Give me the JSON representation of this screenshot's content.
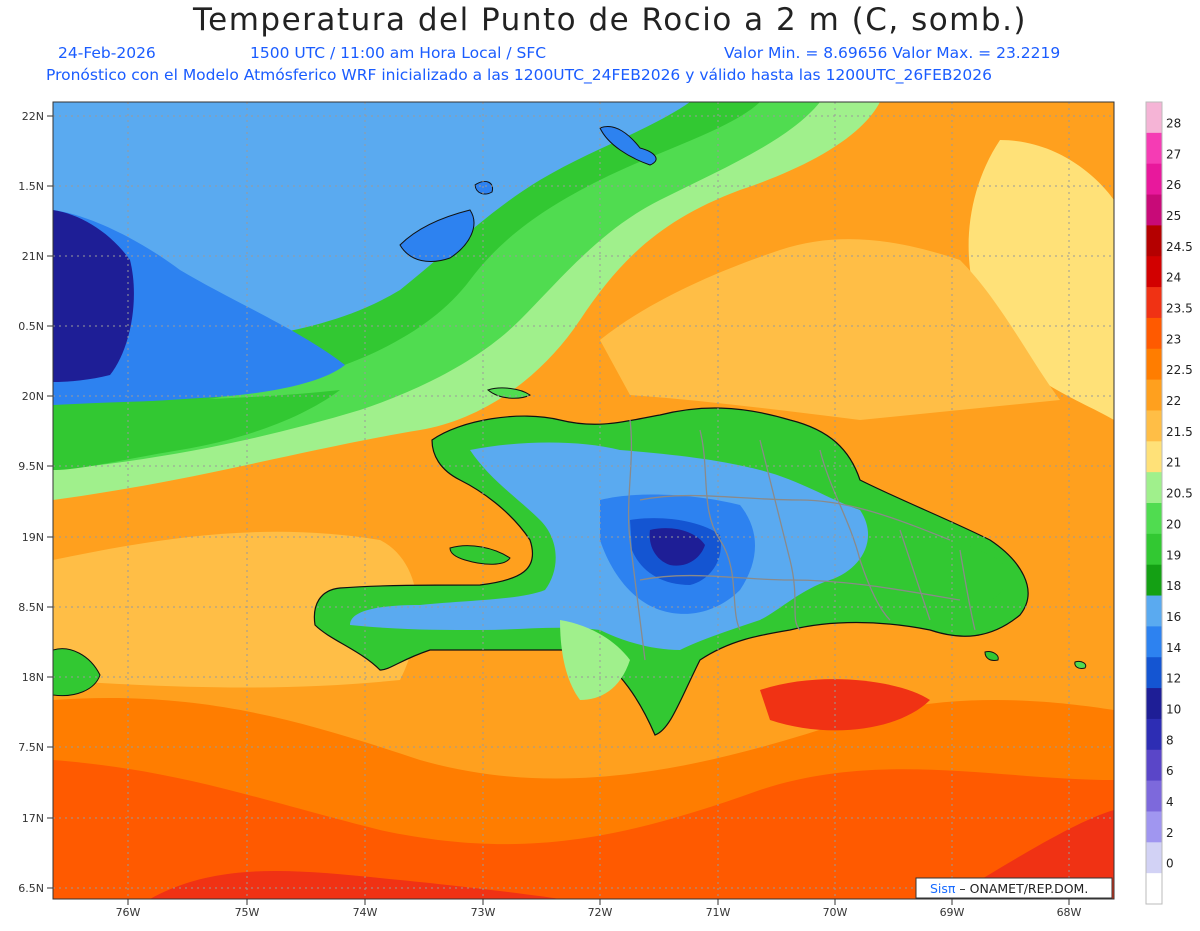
{
  "header": {
    "title": "Temperatura del Punto de Rocio a 2 m (C, somb.)",
    "date": "24-Feb-2026",
    "time_line": "1500 UTC / 11:00 am Hora Local / SFC",
    "range_line": "Valor Min. = 8.69656  Valor Max. = 23.2219",
    "model_line": "Pronóstico con el Modelo Atmósferico WRF inicializado a las 1200UTC_24FEB2026 y válido hasta las  1200UTC_26FEB2026"
  },
  "map": {
    "lat_labels": [
      "22N",
      "1.5N",
      "21N",
      "0.5N",
      "20N",
      "9.5N",
      "19N",
      "8.5N",
      "18N",
      "7.5N",
      "17N",
      "6.5N"
    ],
    "lon_labels": [
      "76W",
      "75W",
      "74W",
      "73W",
      "72W",
      "71W",
      "70W",
      "69W",
      "68W"
    ],
    "credit_logo": "Sisπ",
    "credit_text": " – ONAMET/REP.DOM."
  },
  "colorbar": {
    "labels": [
      "28",
      "27",
      "26",
      "25",
      "24.5",
      "24",
      "23.5",
      "23",
      "22.5",
      "22",
      "21.5",
      "21",
      "20.5",
      "20",
      "19",
      "18",
      "16",
      "14",
      "12",
      "10",
      "8",
      "6",
      "4",
      "2",
      "0"
    ],
    "colors": [
      "#f5b4d6",
      "#f53cb4",
      "#e8189c",
      "#c80a78",
      "#b40000",
      "#d20000",
      "#f03214",
      "#ff5a00",
      "#ff7d00",
      "#ffa01e",
      "#ffbe46",
      "#ffe178",
      "#a0f08c",
      "#50dc50",
      "#32c832",
      "#14a014",
      "#5aaaf0",
      "#2d82f0",
      "#1455d2",
      "#1e1e96",
      "#2d2db4",
      "#5a46c8",
      "#7d69dc",
      "#a096f0",
      "#d2d2f5",
      "#ffffff"
    ]
  }
}
